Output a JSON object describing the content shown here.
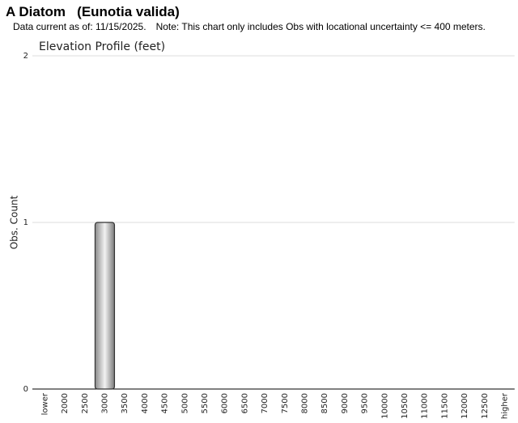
{
  "header": {
    "title": "A Diatom   (Eunotia valida)",
    "date_note": "Data current as of: 11/15/2025.",
    "note": "Note: This chart only includes Obs with locational uncertainty <= 400 meters."
  },
  "chart_data": {
    "type": "bar",
    "title": "Elevation Profile (feet)",
    "y_label": "Obs. Count",
    "categories": [
      "lower",
      "2000",
      "2500",
      "3000",
      "3500",
      "4000",
      "4500",
      "5000",
      "5500",
      "6000",
      "6500",
      "7000",
      "7500",
      "8000",
      "8500",
      "9000",
      "9500",
      "10000",
      "10500",
      "11000",
      "11500",
      "12000",
      "12500",
      "higher"
    ],
    "values": [
      0,
      0,
      0,
      1,
      0,
      0,
      0,
      0,
      0,
      0,
      0,
      0,
      0,
      0,
      0,
      0,
      0,
      0,
      0,
      0,
      0,
      0,
      0,
      0
    ],
    "color": "#999999",
    "ylim": [
      0,
      2
    ],
    "yticks": [
      0,
      1,
      2
    ],
    "grid": true
  }
}
